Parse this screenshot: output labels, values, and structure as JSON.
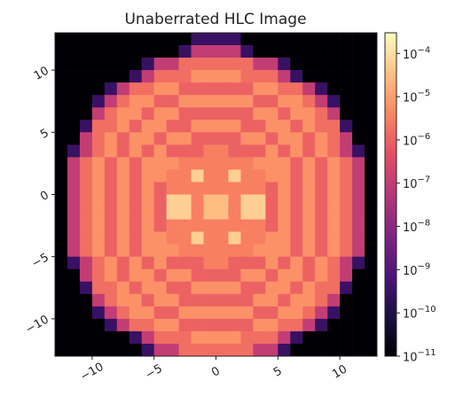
{
  "chart_data": {
    "type": "heatmap",
    "title": "Unaberrated HLC Image",
    "colormap": "magma",
    "log_scale": true,
    "xlim": [
      -13,
      13
    ],
    "ylim": [
      -13,
      13
    ],
    "xticks": [
      {
        "value": -10,
        "label": "−10"
      },
      {
        "value": -5,
        "label": "−5"
      },
      0,
      5,
      10
    ],
    "yticks": [
      {
        "value": -10,
        "label": "−10"
      },
      {
        "value": -5,
        "label": "−5"
      },
      0,
      5,
      10
    ],
    "zlim": [
      1e-11,
      0.0003
    ],
    "zticks": [
      {
        "value": 1e-11,
        "label": "10−11"
      },
      {
        "value": 1e-10,
        "label": "10−10"
      },
      {
        "value": 1e-09,
        "label": "10−9"
      },
      {
        "value": 1e-08,
        "label": "10−8"
      },
      {
        "value": 1e-07,
        "label": "10−7"
      },
      {
        "value": 1e-06,
        "label": "10−6"
      },
      {
        "value": 1e-05,
        "label": "10−5"
      },
      {
        "value": 0.0001,
        "label": "10−4"
      }
    ],
    "z": [
      [
        1e-11,
        1e-11,
        1e-11,
        1e-11,
        1e-11,
        1e-11,
        1e-11,
        1e-11,
        1e-11,
        1e-11,
        1e-11,
        3e-10,
        3e-10,
        3e-10,
        3e-10,
        1e-11,
        1e-11,
        1e-11,
        1e-11,
        1e-11,
        1e-11,
        1e-11,
        1e-11,
        1e-11,
        1e-11,
        1e-11
      ],
      [
        1e-11,
        1e-11,
        1e-11,
        1e-11,
        1e-11,
        1e-11,
        1e-11,
        1e-11,
        1e-11,
        1e-11,
        3e-10,
        1e-07,
        1e-07,
        1e-07,
        1e-07,
        3e-10,
        1e-11,
        1e-11,
        1e-11,
        1e-11,
        1e-11,
        1e-11,
        1e-11,
        1e-11,
        1e-11,
        1e-11
      ],
      [
        1e-11,
        1e-11,
        1e-11,
        1e-11,
        1e-11,
        1e-11,
        1e-11,
        3e-10,
        1e-07,
        1e-07,
        1.6e-06,
        1.6e-06,
        1.6e-06,
        1.6e-06,
        1.6e-06,
        1.6e-06,
        1e-07,
        1e-07,
        3e-10,
        1e-11,
        1e-11,
        1e-11,
        1e-11,
        1e-11,
        1e-11,
        1e-11
      ],
      [
        1e-11,
        1e-11,
        1e-11,
        1e-11,
        1e-11,
        1e-11,
        3e-10,
        1e-07,
        1.6e-06,
        1.6e-06,
        1.6e-06,
        6e-06,
        6e-06,
        6e-06,
        6e-06,
        1.6e-06,
        1.6e-06,
        1.6e-06,
        1e-07,
        3e-10,
        1e-11,
        1e-11,
        1e-11,
        1e-11,
        1e-11,
        1e-11
      ],
      [
        1e-11,
        1e-11,
        1e-11,
        1e-11,
        3e-10,
        1e-07,
        1.6e-06,
        1.6e-06,
        6e-06,
        6e-06,
        1e-06,
        1e-06,
        1e-06,
        1e-06,
        1e-06,
        1e-06,
        6e-06,
        6e-06,
        1.6e-06,
        1.6e-06,
        1e-07,
        3e-10,
        1e-11,
        1e-11,
        1e-11,
        1e-11
      ],
      [
        1e-11,
        1e-11,
        1e-11,
        3e-10,
        1e-07,
        1.6e-06,
        6e-06,
        6e-06,
        1e-06,
        1e-06,
        6e-06,
        6e-06,
        6e-06,
        6e-06,
        6e-06,
        6e-06,
        1e-06,
        1e-06,
        6e-06,
        6e-06,
        1.6e-06,
        1e-07,
        3e-10,
        1e-11,
        1e-11,
        1e-11
      ],
      [
        1e-11,
        1e-11,
        1e-11,
        1e-07,
        1.6e-06,
        6e-06,
        6e-06,
        1e-06,
        6e-06,
        6e-06,
        1e-06,
        1e-06,
        1e-06,
        1e-06,
        1e-06,
        1e-06,
        6e-06,
        6e-06,
        1e-06,
        6e-06,
        6e-06,
        1.6e-06,
        1e-07,
        1e-11,
        1e-11,
        1e-11
      ],
      [
        1e-11,
        1e-11,
        3e-10,
        1.6e-06,
        1.6e-06,
        6e-06,
        1e-06,
        6e-06,
        6e-06,
        1e-06,
        1e-06,
        6e-06,
        6e-06,
        6e-06,
        6e-06,
        1e-06,
        1e-06,
        6e-06,
        6e-06,
        1e-06,
        6e-06,
        1.6e-06,
        1.6e-06,
        3e-10,
        1e-11,
        1e-11
      ],
      [
        1e-11,
        1e-11,
        1e-07,
        1.6e-06,
        6e-06,
        1e-06,
        6e-06,
        6e-06,
        1e-06,
        6e-06,
        6e-06,
        1e-06,
        1e-06,
        1e-06,
        1e-06,
        6e-06,
        6e-06,
        1e-06,
        6e-06,
        6e-06,
        1e-06,
        6e-06,
        1.6e-06,
        1e-07,
        1e-11,
        1e-11
      ],
      [
        1e-11,
        3e-10,
        1e-07,
        1.6e-06,
        6e-06,
        1e-06,
        6e-06,
        1e-06,
        6e-06,
        1e-06,
        1e-06,
        1e-06,
        3e-06,
        3e-06,
        1e-06,
        1e-06,
        1e-06,
        6e-06,
        1e-06,
        6e-06,
        1e-06,
        6e-06,
        1.6e-06,
        1e-07,
        3e-10,
        1e-11
      ],
      [
        1e-11,
        1e-07,
        1.6e-06,
        6e-06,
        1e-06,
        6e-06,
        1e-06,
        6e-06,
        6e-06,
        6e-06,
        3e-06,
        3e-06,
        3e-06,
        3e-06,
        3e-06,
        3e-06,
        6e-06,
        6e-06,
        6e-06,
        1e-06,
        6e-06,
        1e-06,
        6e-06,
        1.6e-06,
        1e-07,
        1e-11
      ],
      [
        1e-11,
        1e-07,
        1.6e-06,
        6e-06,
        1e-06,
        6e-06,
        1e-06,
        6e-06,
        6e-06,
        3e-06,
        3e-06,
        6e-05,
        3e-06,
        3e-06,
        6e-05,
        3e-06,
        3e-06,
        6e-06,
        6e-06,
        1e-06,
        6e-06,
        1e-06,
        6e-06,
        1.6e-06,
        1e-07,
        1e-11
      ],
      [
        1e-11,
        1e-07,
        1.6e-06,
        6e-06,
        1e-06,
        6e-06,
        1e-06,
        6e-06,
        1e-06,
        3e-06,
        3e-06,
        3e-06,
        3e-06,
        3e-06,
        3e-06,
        3e-06,
        3e-06,
        1e-06,
        6e-06,
        1e-06,
        6e-06,
        1e-06,
        6e-06,
        1.6e-06,
        1e-07,
        1e-11
      ],
      [
        1e-11,
        1e-07,
        1.6e-06,
        6e-06,
        1e-06,
        6e-06,
        1e-06,
        6e-06,
        1e-06,
        6e-05,
        6e-05,
        3e-06,
        3e-05,
        3e-05,
        3e-06,
        6e-05,
        6e-05,
        1e-06,
        6e-06,
        1e-06,
        6e-06,
        1e-06,
        6e-06,
        1.6e-06,
        1e-07,
        1e-11
      ],
      [
        1e-11,
        1e-07,
        1.6e-06,
        6e-06,
        1e-06,
        6e-06,
        1e-06,
        6e-06,
        1e-06,
        6e-05,
        6e-05,
        3e-06,
        3e-05,
        3e-05,
        3e-06,
        6e-05,
        6e-05,
        1e-06,
        6e-06,
        1e-06,
        6e-06,
        1e-06,
        6e-06,
        1.6e-06,
        1e-07,
        1e-11
      ],
      [
        1e-11,
        1e-07,
        1.6e-06,
        6e-06,
        1e-06,
        6e-06,
        1e-06,
        6e-06,
        1e-06,
        3e-06,
        3e-06,
        3e-06,
        3e-06,
        3e-06,
        3e-06,
        3e-06,
        3e-06,
        1e-06,
        6e-06,
        1e-06,
        6e-06,
        1e-06,
        6e-06,
        1.6e-06,
        1e-07,
        1e-11
      ],
      [
        1e-11,
        1e-07,
        1.6e-06,
        6e-06,
        1e-06,
        6e-06,
        1e-06,
        6e-06,
        6e-06,
        3e-06,
        3e-06,
        6e-05,
        3e-06,
        3e-06,
        6e-05,
        3e-06,
        3e-06,
        6e-06,
        6e-06,
        1e-06,
        6e-06,
        1e-06,
        6e-06,
        1.6e-06,
        1e-07,
        1e-11
      ],
      [
        1e-11,
        1e-07,
        1.6e-06,
        6e-06,
        1e-06,
        6e-06,
        1e-06,
        6e-06,
        6e-06,
        6e-06,
        3e-06,
        3e-06,
        3e-06,
        3e-06,
        3e-06,
        3e-06,
        6e-06,
        6e-06,
        6e-06,
        1e-06,
        6e-06,
        1e-06,
        6e-06,
        1.6e-06,
        1e-07,
        1e-11
      ],
      [
        1e-11,
        3e-10,
        1e-07,
        1.6e-06,
        6e-06,
        1e-06,
        6e-06,
        1e-06,
        6e-06,
        1e-06,
        1e-06,
        1e-06,
        3e-06,
        3e-06,
        1e-06,
        1e-06,
        1e-06,
        6e-06,
        1e-06,
        6e-06,
        1e-06,
        6e-06,
        1.6e-06,
        1e-07,
        3e-10,
        1e-11
      ],
      [
        1e-11,
        1e-11,
        1e-07,
        1.6e-06,
        6e-06,
        1e-06,
        6e-06,
        6e-06,
        1e-06,
        6e-06,
        6e-06,
        1e-06,
        1e-06,
        1e-06,
        1e-06,
        6e-06,
        6e-06,
        1e-06,
        6e-06,
        6e-06,
        1e-06,
        6e-06,
        1.6e-06,
        1e-07,
        1e-11,
        1e-11
      ],
      [
        1e-11,
        1e-11,
        3e-10,
        1.6e-06,
        1.6e-06,
        6e-06,
        1e-06,
        6e-06,
        6e-06,
        1e-06,
        1e-06,
        6e-06,
        6e-06,
        6e-06,
        6e-06,
        1e-06,
        1e-06,
        6e-06,
        6e-06,
        1e-06,
        6e-06,
        1.6e-06,
        1.6e-06,
        3e-10,
        1e-11,
        1e-11
      ],
      [
        1e-11,
        1e-11,
        1e-11,
        1e-07,
        1.6e-06,
        6e-06,
        6e-06,
        1e-06,
        6e-06,
        6e-06,
        1e-06,
        1e-06,
        1e-06,
        1e-06,
        1e-06,
        1e-06,
        6e-06,
        6e-06,
        1e-06,
        6e-06,
        6e-06,
        1.6e-06,
        1e-07,
        1e-11,
        1e-11,
        1e-11
      ],
      [
        1e-11,
        1e-11,
        1e-11,
        3e-10,
        1e-07,
        1.6e-06,
        6e-06,
        6e-06,
        1e-06,
        1e-06,
        6e-06,
        6e-06,
        6e-06,
        6e-06,
        6e-06,
        6e-06,
        1e-06,
        1e-06,
        6e-06,
        6e-06,
        1.6e-06,
        1e-07,
        3e-10,
        1e-11,
        1e-11,
        1e-11
      ],
      [
        1e-11,
        1e-11,
        1e-11,
        1e-11,
        3e-10,
        1e-07,
        1.6e-06,
        1.6e-06,
        6e-06,
        6e-06,
        1e-06,
        1e-06,
        1e-06,
        1e-06,
        1e-06,
        1e-06,
        6e-06,
        6e-06,
        1.6e-06,
        1.6e-06,
        1e-07,
        3e-10,
        1e-11,
        1e-11,
        1e-11,
        1e-11
      ],
      [
        1e-11,
        1e-11,
        1e-11,
        1e-11,
        1e-11,
        1e-11,
        3e-10,
        1e-07,
        1.6e-06,
        1.6e-06,
        1.6e-06,
        6e-06,
        6e-06,
        6e-06,
        6e-06,
        1.6e-06,
        1.6e-06,
        1.6e-06,
        1e-07,
        3e-10,
        1e-11,
        1e-11,
        1e-11,
        1e-11,
        1e-11,
        1e-11
      ],
      [
        1e-11,
        1e-11,
        1e-11,
        1e-11,
        1e-11,
        1e-11,
        1e-11,
        3e-10,
        1e-07,
        1e-07,
        1.6e-06,
        1.6e-06,
        1.6e-06,
        1.6e-06,
        1.6e-06,
        1.6e-06,
        1e-07,
        1e-07,
        3e-10,
        1e-11,
        1e-11,
        1e-11,
        1e-11,
        1e-11,
        1e-11,
        1e-11
      ]
    ]
  }
}
